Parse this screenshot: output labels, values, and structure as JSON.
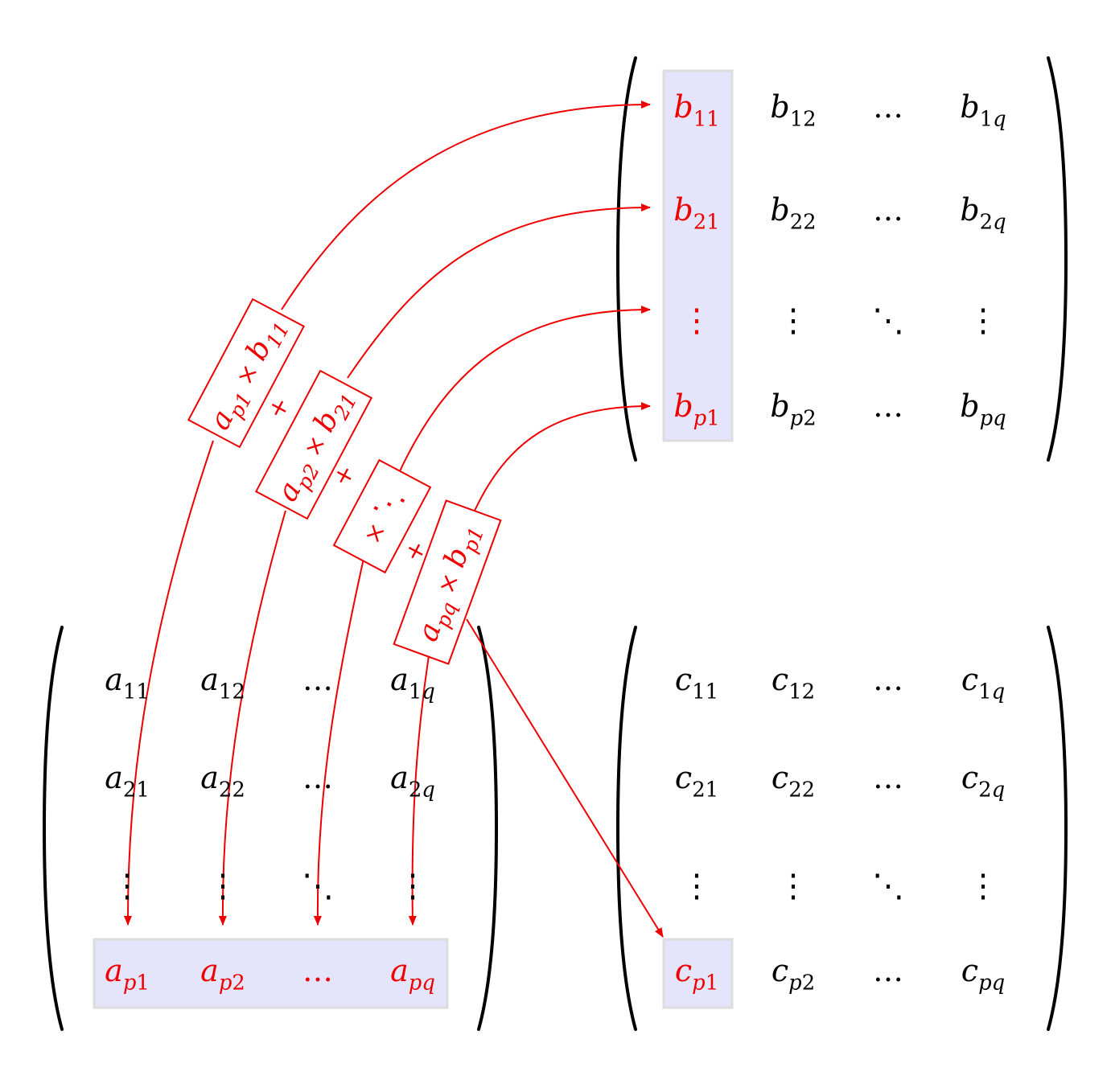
{
  "colors": {
    "highlight": "#e4e4fb",
    "highlight_border": "#dddddd",
    "accent": "#ee0000",
    "text": "#000000"
  },
  "matrix_b": {
    "rows": [
      [
        {
          "b": "b",
          "s": "11"
        },
        {
          "b": "b",
          "s": "12"
        },
        {
          "b": "…",
          "s": ""
        },
        {
          "b": "b",
          "s": "1q"
        }
      ],
      [
        {
          "b": "b",
          "s": "21"
        },
        {
          "b": "b",
          "s": "22"
        },
        {
          "b": "…",
          "s": ""
        },
        {
          "b": "b",
          "s": "2q"
        }
      ],
      [
        {
          "b": "⋮",
          "s": ""
        },
        {
          "b": "⋮",
          "s": ""
        },
        {
          "b": "⋱",
          "s": ""
        },
        {
          "b": "⋮",
          "s": ""
        }
      ],
      [
        {
          "b": "b",
          "s": "p1"
        },
        {
          "b": "b",
          "s": "p2"
        },
        {
          "b": "…",
          "s": ""
        },
        {
          "b": "b",
          "s": "pq"
        }
      ]
    ]
  },
  "matrix_a": {
    "rows": [
      [
        {
          "b": "a",
          "s": "11"
        },
        {
          "b": "a",
          "s": "12"
        },
        {
          "b": "…",
          "s": ""
        },
        {
          "b": "a",
          "s": "1q"
        }
      ],
      [
        {
          "b": "a",
          "s": "21"
        },
        {
          "b": "a",
          "s": "22"
        },
        {
          "b": "…",
          "s": ""
        },
        {
          "b": "a",
          "s": "2q"
        }
      ],
      [
        {
          "b": "⋮",
          "s": ""
        },
        {
          "b": "⋮",
          "s": ""
        },
        {
          "b": "⋱",
          "s": ""
        },
        {
          "b": "⋮",
          "s": ""
        }
      ],
      [
        {
          "b": "a",
          "s": "p1"
        },
        {
          "b": "a",
          "s": "p2"
        },
        {
          "b": "…",
          "s": ""
        },
        {
          "b": "a",
          "s": "pq"
        }
      ]
    ]
  },
  "matrix_c": {
    "rows": [
      [
        {
          "b": "c",
          "s": "11"
        },
        {
          "b": "c",
          "s": "12"
        },
        {
          "b": "…",
          "s": ""
        },
        {
          "b": "c",
          "s": "1q"
        }
      ],
      [
        {
          "b": "c",
          "s": "21"
        },
        {
          "b": "c",
          "s": "22"
        },
        {
          "b": "…",
          "s": ""
        },
        {
          "b": "c",
          "s": "2q"
        }
      ],
      [
        {
          "b": "⋮",
          "s": ""
        },
        {
          "b": "⋮",
          "s": ""
        },
        {
          "b": "⋱",
          "s": ""
        },
        {
          "b": "⋮",
          "s": ""
        }
      ],
      [
        {
          "b": "c",
          "s": "p1"
        },
        {
          "b": "c",
          "s": "p2"
        },
        {
          "b": "…",
          "s": ""
        },
        {
          "b": "c",
          "s": "pq"
        }
      ]
    ]
  },
  "products": [
    {
      "a": "a",
      "as": "p1",
      "op": "×",
      "b": "b",
      "bs": "11"
    },
    {
      "a": "a",
      "as": "p2",
      "op": "×",
      "b": "b",
      "bs": "21"
    },
    {
      "a": "",
      "as": "",
      "op": "×",
      "b": "⋱",
      "bs": ""
    },
    {
      "a": "a",
      "as": "pq",
      "op": "×",
      "b": "b",
      "bs": "p1"
    }
  ],
  "sum_sign": "+"
}
